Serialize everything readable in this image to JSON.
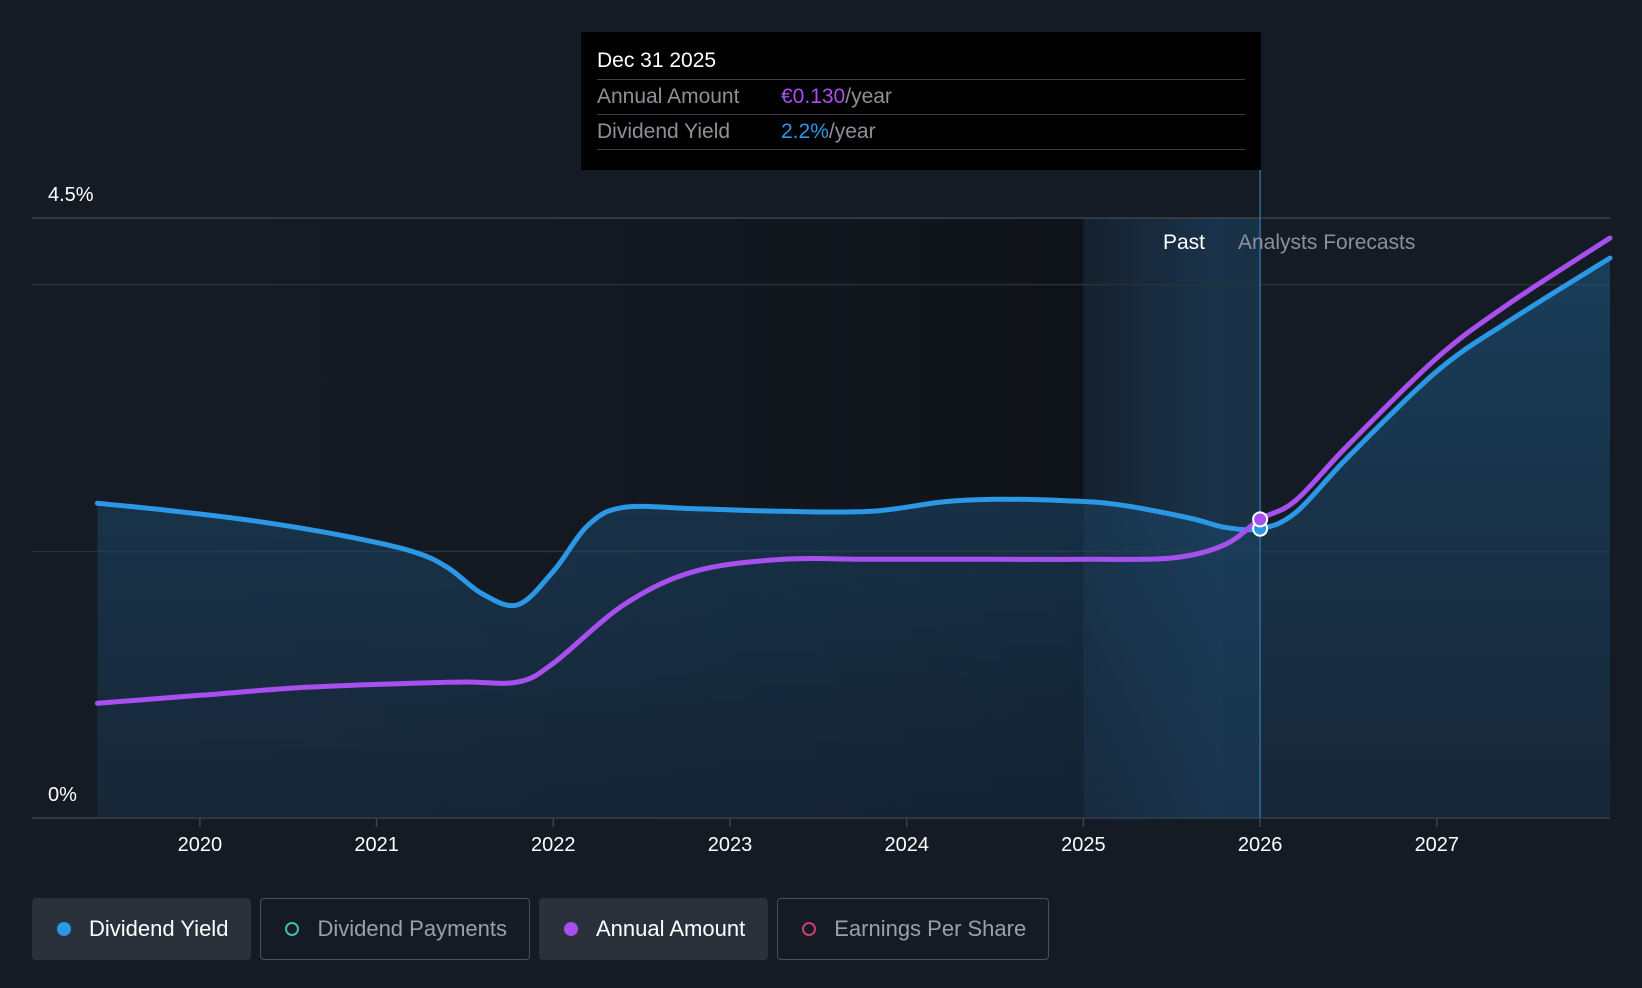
{
  "chart_data": {
    "type": "line",
    "title": "",
    "xlabel": "",
    "ylabel": "",
    "xlim": [
      2019.05,
      2027.98
    ],
    "ylim": [
      0,
      4.5
    ],
    "y_tick_labels": [
      "4.5%",
      "0%"
    ],
    "x_ticks": [
      2020,
      2021,
      2022,
      2023,
      2024,
      2025,
      2026,
      2027
    ],
    "x_tick_labels": [
      "2020",
      "2021",
      "2022",
      "2023",
      "2024",
      "2025",
      "2026",
      "2027"
    ],
    "past_label": "Past",
    "forecast_label": "Analysts Forecasts",
    "past_region": [
      2025.0,
      2025.79
    ],
    "forecast_start": 2026.0,
    "highlight_x": 2026.0,
    "series": [
      {
        "name": "Dividend Yield",
        "color": "#2b98e6",
        "filled": true,
        "points": [
          [
            2019.42,
            2.36
          ],
          [
            2019.8,
            2.31
          ],
          [
            2020.3,
            2.23
          ],
          [
            2020.8,
            2.12
          ],
          [
            2021.2,
            2.0
          ],
          [
            2021.4,
            1.88
          ],
          [
            2021.6,
            1.68
          ],
          [
            2021.8,
            1.6
          ],
          [
            2022.0,
            1.85
          ],
          [
            2022.2,
            2.2
          ],
          [
            2022.4,
            2.33
          ],
          [
            2022.8,
            2.32
          ],
          [
            2023.3,
            2.3
          ],
          [
            2023.8,
            2.3
          ],
          [
            2024.2,
            2.37
          ],
          [
            2024.5,
            2.39
          ],
          [
            2024.9,
            2.38
          ],
          [
            2025.2,
            2.35
          ],
          [
            2025.6,
            2.25
          ],
          [
            2025.8,
            2.18
          ],
          [
            2026.0,
            2.17
          ],
          [
            2026.2,
            2.29
          ],
          [
            2026.5,
            2.71
          ],
          [
            2027.0,
            3.35
          ],
          [
            2027.4,
            3.72
          ],
          [
            2027.98,
            4.2
          ]
        ]
      },
      {
        "name": "Annual Amount",
        "color": "#a84ff0",
        "filled": false,
        "points": [
          [
            2019.42,
            0.86
          ],
          [
            2020.0,
            0.92
          ],
          [
            2020.6,
            0.98
          ],
          [
            2021.2,
            1.01
          ],
          [
            2021.5,
            1.02
          ],
          [
            2021.8,
            1.02
          ],
          [
            2022.0,
            1.16
          ],
          [
            2022.4,
            1.6
          ],
          [
            2022.8,
            1.85
          ],
          [
            2023.3,
            1.94
          ],
          [
            2023.8,
            1.94
          ],
          [
            2024.5,
            1.94
          ],
          [
            2025.0,
            1.94
          ],
          [
            2025.5,
            1.95
          ],
          [
            2025.8,
            2.05
          ],
          [
            2026.0,
            2.24
          ],
          [
            2026.2,
            2.38
          ],
          [
            2026.5,
            2.8
          ],
          [
            2027.0,
            3.45
          ],
          [
            2027.4,
            3.85
          ],
          [
            2027.98,
            4.35
          ]
        ]
      }
    ],
    "legend": [
      {
        "name": "Dividend Yield",
        "color": "#2b98e6",
        "active": true
      },
      {
        "name": "Dividend Payments",
        "color": "#3fbcb0",
        "active": false
      },
      {
        "name": "Annual Amount",
        "color": "#a84ff0",
        "active": true
      },
      {
        "name": "Earnings Per Share",
        "color": "#c9406f",
        "active": false
      }
    ]
  },
  "tooltip": {
    "date": "Dec 31 2025",
    "rows": [
      {
        "label": "Annual Amount",
        "value": "€0.130",
        "unit": "/year"
      },
      {
        "label": "Dividend Yield",
        "value": "2.2%",
        "unit": "/year"
      }
    ]
  }
}
